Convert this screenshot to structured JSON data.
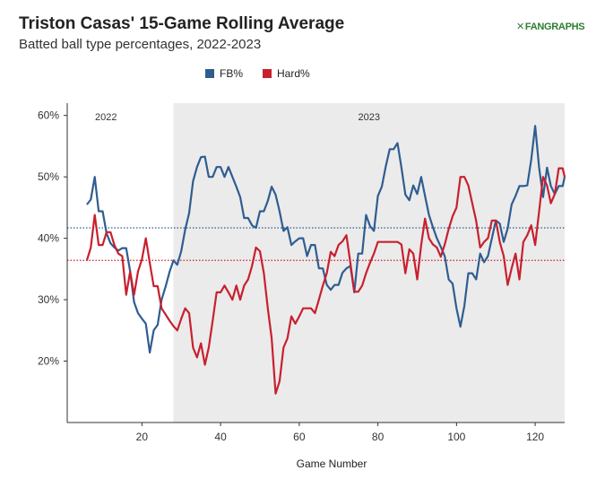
{
  "header": {
    "title": "Triston Casas' 15-Game Rolling Average",
    "subtitle": "Batted ball type percentages, 2022-2023",
    "logo": "FANGRAPHS"
  },
  "chart_data": {
    "type": "line",
    "title": "Triston Casas' 15-Game Rolling Average",
    "subtitle": "Batted ball type percentages, 2022-2023",
    "xlabel": "Game Number",
    "ylabel": "",
    "xlim": [
      1,
      127.5
    ],
    "ylim": [
      10,
      62
    ],
    "xticks": [
      20,
      40,
      60,
      80,
      100,
      120
    ],
    "yticks": [
      20,
      30,
      40,
      50,
      60
    ],
    "ytick_labels": [
      "20%",
      "30%",
      "40%",
      "50%",
      "60%"
    ],
    "legend": {
      "placement": "top-center",
      "entries": [
        "FB%",
        "Hard%"
      ]
    },
    "grid": false,
    "season_regions": [
      {
        "label": "2022",
        "start": 1,
        "end": 28,
        "shaded": false
      },
      {
        "label": "2023",
        "start": 28,
        "end": 127.5,
        "shaded": true
      }
    ],
    "reference_lines": [
      {
        "series": "FB%",
        "value": 41.7,
        "style": "dotted"
      },
      {
        "series": "Hard%",
        "value": 36.4,
        "style": "dotted"
      }
    ],
    "series": [
      {
        "name": "FB%",
        "color": "#2f5d91",
        "points": [
          [
            6,
            45.5
          ],
          [
            7,
            46.3
          ],
          [
            8,
            50.0
          ],
          [
            9,
            44.4
          ],
          [
            10,
            44.4
          ],
          [
            11,
            40.8
          ],
          [
            12,
            39.2
          ],
          [
            13,
            38.5
          ],
          [
            14,
            38.0
          ],
          [
            15,
            38.4
          ],
          [
            16,
            38.4
          ],
          [
            17,
            34.6
          ],
          [
            18,
            29.6
          ],
          [
            19,
            27.8
          ],
          [
            20,
            26.9
          ],
          [
            21,
            26.1
          ],
          [
            22,
            21.4
          ],
          [
            23,
            25.0
          ],
          [
            24,
            25.9
          ],
          [
            25,
            30.0
          ],
          [
            26,
            32.1
          ],
          [
            27,
            34.5
          ],
          [
            28,
            36.4
          ],
          [
            29,
            35.7
          ],
          [
            30,
            37.9
          ],
          [
            31,
            41.4
          ],
          [
            32,
            44.1
          ],
          [
            33,
            49.3
          ],
          [
            34,
            51.6
          ],
          [
            35,
            53.2
          ],
          [
            36,
            53.3
          ],
          [
            37,
            50.0
          ],
          [
            38,
            50.0
          ],
          [
            39,
            51.6
          ],
          [
            40,
            51.6
          ],
          [
            41,
            50.0
          ],
          [
            42,
            51.6
          ],
          [
            43,
            50.0
          ],
          [
            44,
            48.4
          ],
          [
            45,
            46.7
          ],
          [
            46,
            43.3
          ],
          [
            47,
            43.3
          ],
          [
            48,
            42.1
          ],
          [
            49,
            41.7
          ],
          [
            50,
            44.4
          ],
          [
            51,
            44.4
          ],
          [
            52,
            46.1
          ],
          [
            53,
            48.4
          ],
          [
            54,
            47.1
          ],
          [
            55,
            44.4
          ],
          [
            56,
            41.2
          ],
          [
            57,
            41.8
          ],
          [
            58,
            38.9
          ],
          [
            59,
            39.5
          ],
          [
            60,
            40.0
          ],
          [
            61,
            40.0
          ],
          [
            62,
            37.1
          ],
          [
            63,
            38.9
          ],
          [
            64,
            38.9
          ],
          [
            65,
            35.1
          ],
          [
            66,
            35.1
          ],
          [
            67,
            32.4
          ],
          [
            68,
            31.6
          ],
          [
            69,
            32.4
          ],
          [
            70,
            32.4
          ],
          [
            71,
            34.4
          ],
          [
            72,
            35.1
          ],
          [
            73,
            35.5
          ],
          [
            74,
            31.2
          ],
          [
            75,
            37.5
          ],
          [
            76,
            37.5
          ],
          [
            77,
            43.8
          ],
          [
            78,
            42.0
          ],
          [
            79,
            41.2
          ],
          [
            80,
            46.9
          ],
          [
            81,
            48.4
          ],
          [
            82,
            51.7
          ],
          [
            83,
            54.5
          ],
          [
            84,
            54.5
          ],
          [
            85,
            55.5
          ],
          [
            86,
            51.5
          ],
          [
            87,
            47.1
          ],
          [
            88,
            46.2
          ],
          [
            89,
            48.6
          ],
          [
            90,
            47.2
          ],
          [
            91,
            50.0
          ],
          [
            92,
            46.9
          ],
          [
            93,
            43.8
          ],
          [
            94,
            41.8
          ],
          [
            95,
            40.0
          ],
          [
            96,
            38.6
          ],
          [
            97,
            37.1
          ],
          [
            98,
            33.3
          ],
          [
            99,
            32.6
          ],
          [
            100,
            28.6
          ],
          [
            101,
            25.6
          ],
          [
            102,
            29.0
          ],
          [
            103,
            34.3
          ],
          [
            104,
            34.3
          ],
          [
            105,
            33.3
          ],
          [
            106,
            37.5
          ],
          [
            107,
            36.1
          ],
          [
            108,
            37.1
          ],
          [
            109,
            40.0
          ],
          [
            110,
            42.9
          ],
          [
            111,
            42.4
          ],
          [
            112,
            39.4
          ],
          [
            113,
            41.6
          ],
          [
            114,
            45.5
          ],
          [
            115,
            46.9
          ],
          [
            116,
            48.5
          ],
          [
            117,
            48.5
          ],
          [
            118,
            48.6
          ],
          [
            119,
            52.8
          ],
          [
            120,
            58.3
          ],
          [
            121,
            51.5
          ],
          [
            122,
            46.7
          ],
          [
            123,
            51.5
          ],
          [
            124,
            48.5
          ],
          [
            125,
            47.2
          ],
          [
            126,
            48.5
          ],
          [
            127,
            48.5
          ],
          [
            127.5,
            50.0
          ]
        ]
      },
      {
        "name": "Hard%",
        "color": "#c8202f",
        "points": [
          [
            6,
            36.4
          ],
          [
            7,
            38.5
          ],
          [
            8,
            43.8
          ],
          [
            9,
            38.9
          ],
          [
            10,
            38.9
          ],
          [
            11,
            41.0
          ],
          [
            12,
            41.0
          ],
          [
            13,
            38.9
          ],
          [
            14,
            37.5
          ],
          [
            15,
            37.1
          ],
          [
            16,
            30.8
          ],
          [
            17,
            34.6
          ],
          [
            18,
            30.8
          ],
          [
            19,
            34.6
          ],
          [
            20,
            36.6
          ],
          [
            21,
            40.0
          ],
          [
            22,
            36.0
          ],
          [
            23,
            32.2
          ],
          [
            24,
            32.2
          ],
          [
            25,
            28.6
          ],
          [
            26,
            27.6
          ],
          [
            27,
            26.6
          ],
          [
            28,
            25.7
          ],
          [
            29,
            25.0
          ],
          [
            30,
            26.9
          ],
          [
            31,
            28.6
          ],
          [
            32,
            27.8
          ],
          [
            33,
            22.2
          ],
          [
            34,
            20.6
          ],
          [
            35,
            22.9
          ],
          [
            36,
            19.4
          ],
          [
            37,
            22.2
          ],
          [
            38,
            26.6
          ],
          [
            39,
            31.2
          ],
          [
            40,
            31.2
          ],
          [
            41,
            32.3
          ],
          [
            42,
            31.2
          ],
          [
            43,
            30.0
          ],
          [
            44,
            32.3
          ],
          [
            45,
            30.0
          ],
          [
            46,
            32.3
          ],
          [
            47,
            33.3
          ],
          [
            48,
            35.5
          ],
          [
            49,
            38.5
          ],
          [
            50,
            37.9
          ],
          [
            51,
            34.3
          ],
          [
            52,
            28.6
          ],
          [
            53,
            23.7
          ],
          [
            54,
            14.7
          ],
          [
            55,
            16.7
          ],
          [
            56,
            22.2
          ],
          [
            57,
            23.7
          ],
          [
            58,
            27.3
          ],
          [
            59,
            26.1
          ],
          [
            60,
            27.3
          ],
          [
            61,
            28.6
          ],
          [
            62,
            28.6
          ],
          [
            63,
            28.6
          ],
          [
            64,
            27.8
          ],
          [
            65,
            30.0
          ],
          [
            66,
            32.3
          ],
          [
            67,
            34.3
          ],
          [
            68,
            37.8
          ],
          [
            69,
            37.1
          ],
          [
            70,
            38.9
          ],
          [
            71,
            39.5
          ],
          [
            72,
            40.5
          ],
          [
            73,
            36.0
          ],
          [
            74,
            31.3
          ],
          [
            75,
            31.3
          ],
          [
            76,
            32.3
          ],
          [
            77,
            34.3
          ],
          [
            78,
            36.0
          ],
          [
            79,
            37.5
          ],
          [
            80,
            39.4
          ],
          [
            81,
            39.4
          ],
          [
            82,
            39.4
          ],
          [
            83,
            39.4
          ],
          [
            84,
            39.4
          ],
          [
            85,
            39.4
          ],
          [
            86,
            39.0
          ],
          [
            87,
            34.3
          ],
          [
            88,
            38.2
          ],
          [
            89,
            37.5
          ],
          [
            90,
            33.3
          ],
          [
            91,
            38.9
          ],
          [
            92,
            43.2
          ],
          [
            93,
            40.0
          ],
          [
            94,
            39.0
          ],
          [
            95,
            38.5
          ],
          [
            96,
            37.0
          ],
          [
            97,
            39.0
          ],
          [
            98,
            41.5
          ],
          [
            99,
            43.6
          ],
          [
            100,
            45.0
          ],
          [
            101,
            50.0
          ],
          [
            102,
            50.0
          ],
          [
            103,
            48.6
          ],
          [
            104,
            45.7
          ],
          [
            105,
            42.8
          ],
          [
            106,
            38.5
          ],
          [
            107,
            39.4
          ],
          [
            108,
            40.0
          ],
          [
            109,
            42.9
          ],
          [
            110,
            42.9
          ],
          [
            111,
            39.4
          ],
          [
            112,
            37.1
          ],
          [
            113,
            32.4
          ],
          [
            114,
            35.1
          ],
          [
            115,
            37.5
          ],
          [
            116,
            33.3
          ],
          [
            117,
            39.4
          ],
          [
            118,
            40.5
          ],
          [
            119,
            42.1
          ],
          [
            120,
            38.9
          ],
          [
            121,
            44.4
          ],
          [
            122,
            50.0
          ],
          [
            123,
            48.6
          ],
          [
            124,
            45.7
          ],
          [
            125,
            47.2
          ],
          [
            126,
            51.4
          ],
          [
            127,
            51.4
          ],
          [
            127.5,
            50.0
          ]
        ]
      }
    ]
  }
}
